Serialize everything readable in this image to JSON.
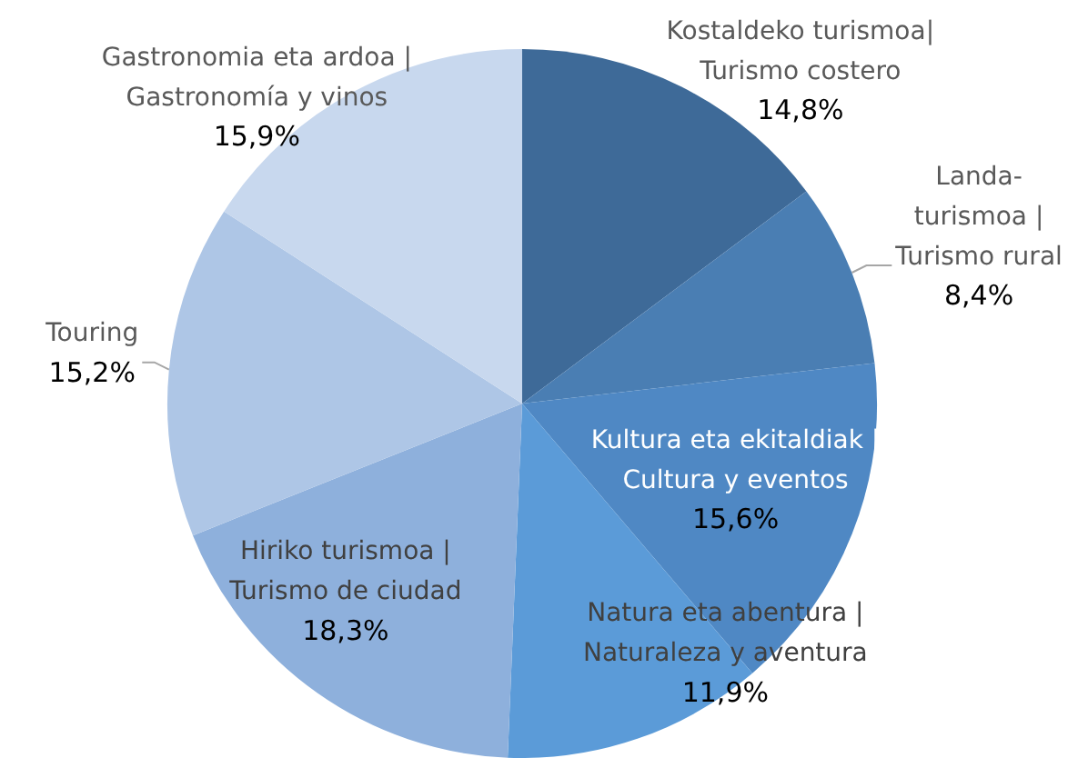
{
  "chart_data": {
    "type": "pie",
    "categories": [
      "Kostaldeko turismoa|\nTurismo costero",
      "Landa-\nturismoa |\nTurismo rural",
      "Kultura eta ekitaldiak |\nCultura y eventos",
      "Natura eta abentura |\nNaturaleza y aventura",
      "Hiriko turismoa |\nTurismo de ciudad",
      "Touring",
      "Gastronomia eta ardoa |\nGastronomía y vinos"
    ],
    "values": [
      14.8,
      8.4,
      15.6,
      11.9,
      18.3,
      15.2,
      15.9
    ],
    "value_labels": [
      "14,8%",
      "8,4%",
      "15,6%",
      "11,9%",
      "18,3%",
      "15,2%",
      "15,9%"
    ],
    "colors": [
      "#3e6a98",
      "#4a7eb3",
      "#4f88c4",
      "#5b9bd8",
      "#8eb0dc",
      "#aec6e6",
      "#c8d8ee"
    ],
    "legend": false
  }
}
